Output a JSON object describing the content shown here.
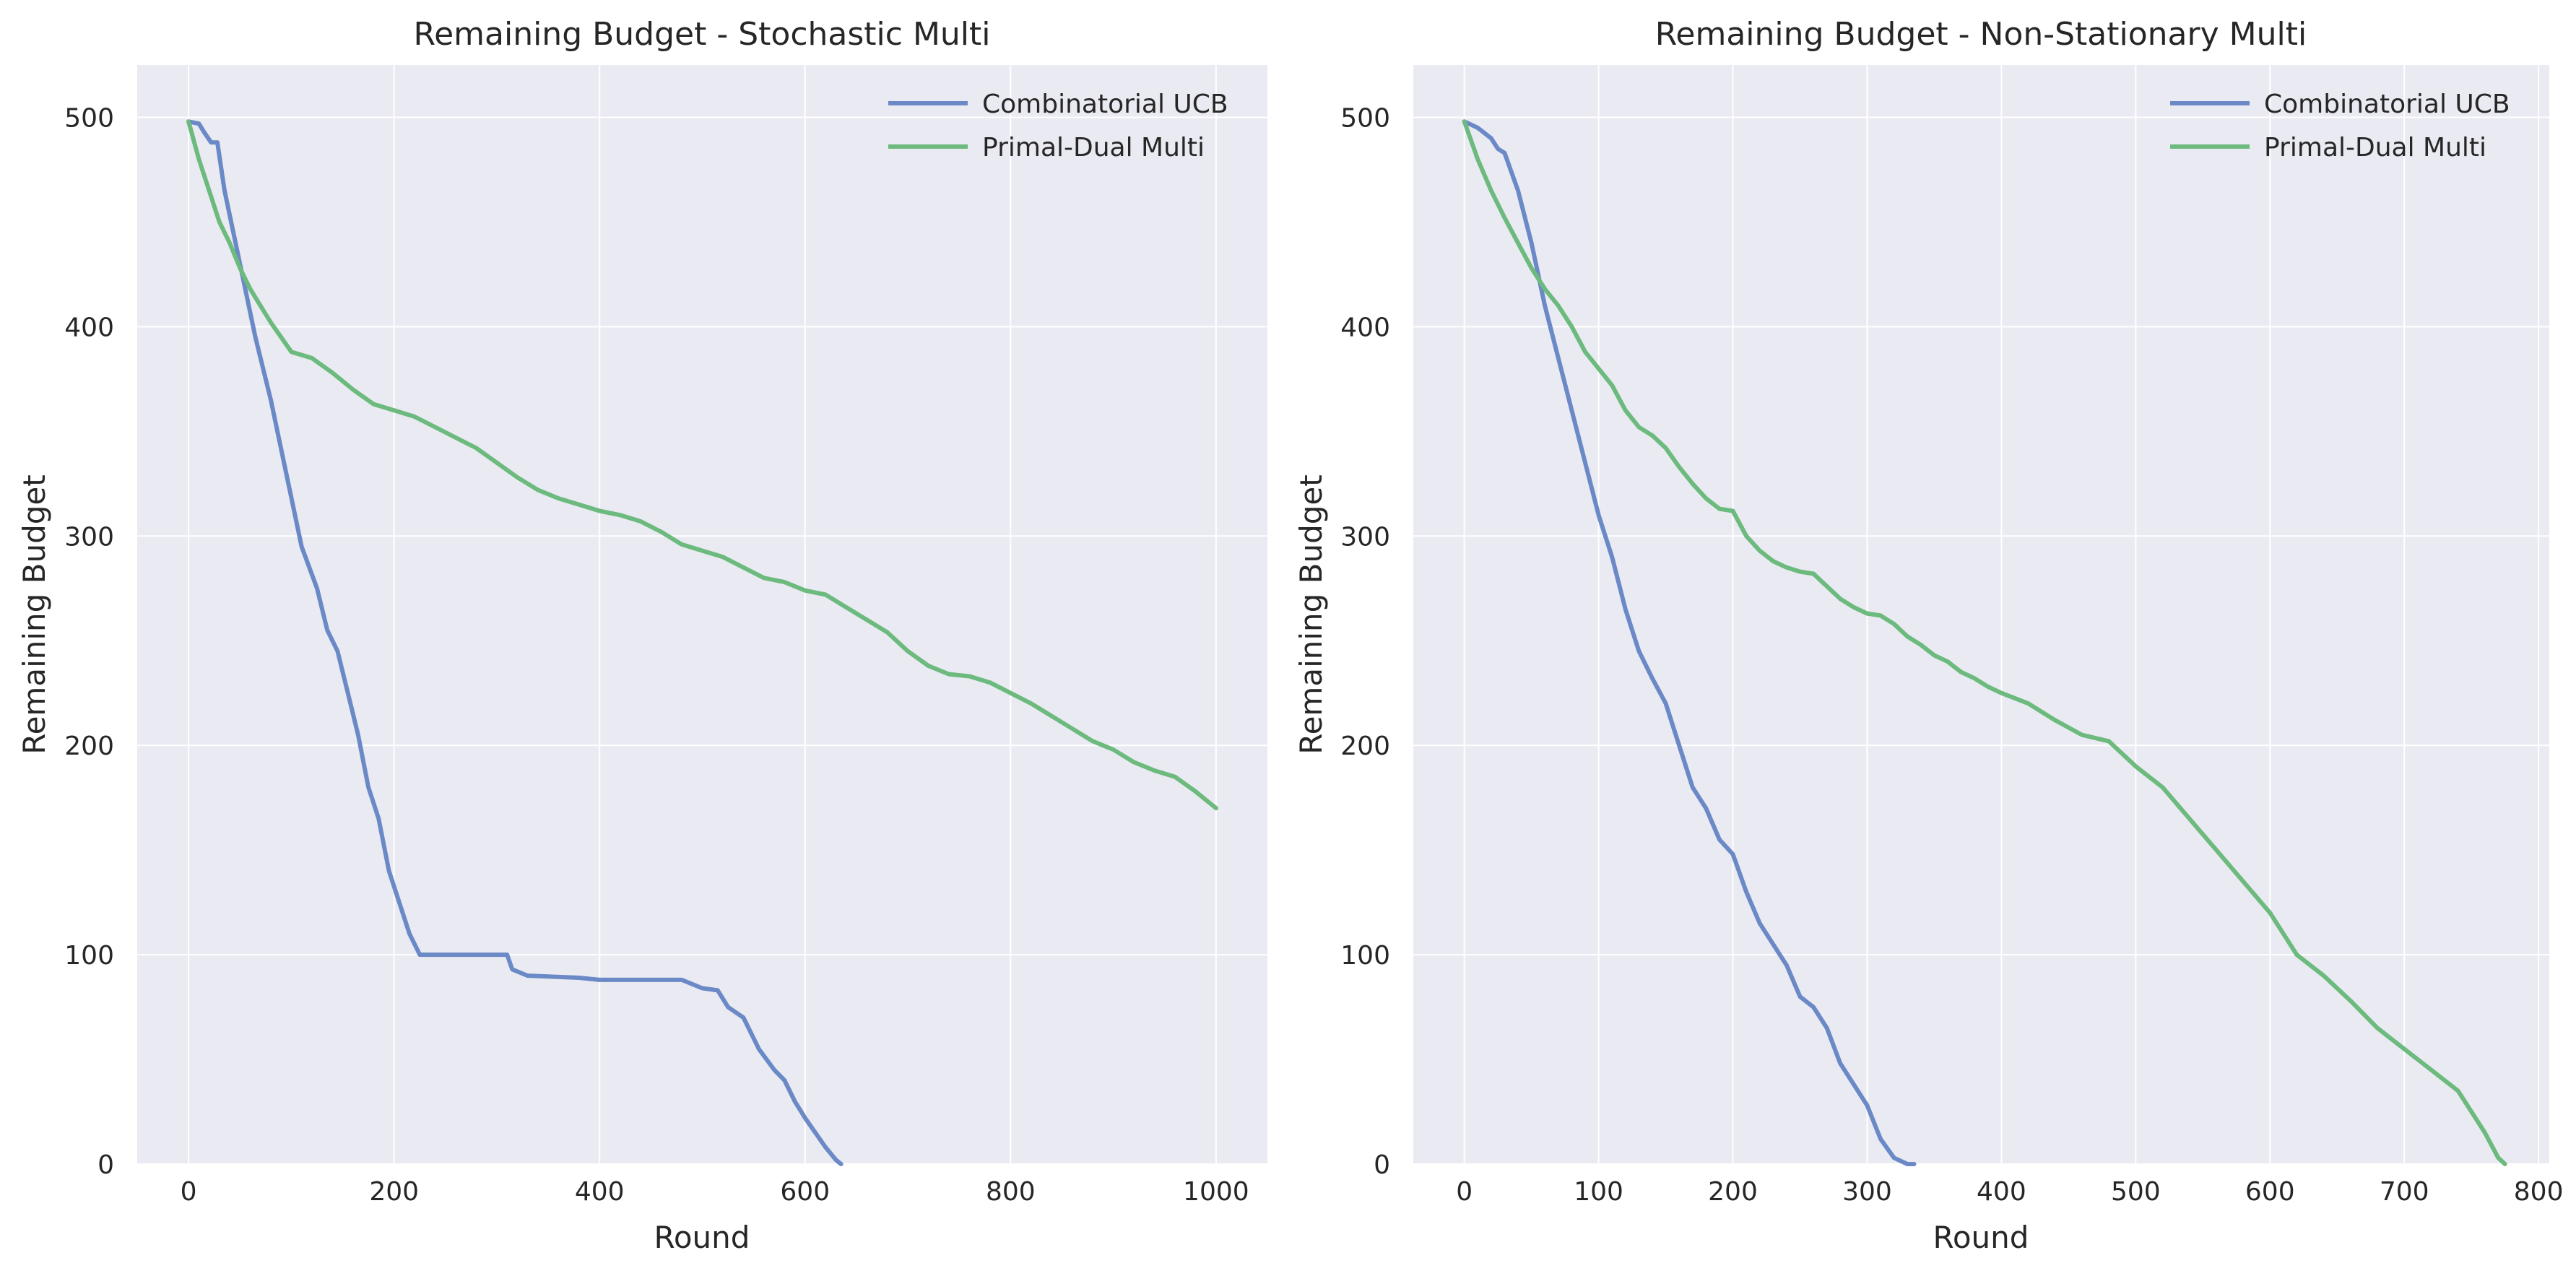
{
  "chart_data": [
    {
      "type": "line",
      "title": "Remaining Budget - Stochastic Multi",
      "xlabel": "Round",
      "ylabel": "Remaining Budget",
      "xlim": [
        -50,
        1050
      ],
      "ylim": [
        0,
        525
      ],
      "xticks": [
        0,
        200,
        400,
        600,
        800,
        1000
      ],
      "yticks": [
        0,
        100,
        200,
        300,
        400,
        500
      ],
      "grid": true,
      "legend_position": "top-right",
      "series": [
        {
          "name": "Combinatorial UCB",
          "color": "#6a89c6",
          "points": [
            [
              0,
              498
            ],
            [
              10,
              497
            ],
            [
              15,
              493
            ],
            [
              22,
              488
            ],
            [
              28,
              488
            ],
            [
              35,
              465
            ],
            [
              50,
              430
            ],
            [
              65,
              395
            ],
            [
              80,
              365
            ],
            [
              95,
              330
            ],
            [
              110,
              295
            ],
            [
              125,
              275
            ],
            [
              135,
              255
            ],
            [
              145,
              245
            ],
            [
              155,
              225
            ],
            [
              165,
              205
            ],
            [
              175,
              180
            ],
            [
              185,
              165
            ],
            [
              195,
              140
            ],
            [
              205,
              125
            ],
            [
              215,
              110
            ],
            [
              225,
              100
            ],
            [
              260,
              100
            ],
            [
              310,
              100
            ],
            [
              315,
              93
            ],
            [
              330,
              90
            ],
            [
              380,
              89
            ],
            [
              400,
              88
            ],
            [
              480,
              88
            ],
            [
              500,
              84
            ],
            [
              515,
              83
            ],
            [
              525,
              75
            ],
            [
              540,
              70
            ],
            [
              555,
              55
            ],
            [
              570,
              45
            ],
            [
              580,
              40
            ],
            [
              590,
              30
            ],
            [
              600,
              22
            ],
            [
              610,
              15
            ],
            [
              620,
              8
            ],
            [
              630,
              2
            ],
            [
              635,
              0
            ]
          ]
        },
        {
          "name": "Primal-Dual Multi",
          "color": "#6cba7d",
          "points": [
            [
              0,
              498
            ],
            [
              10,
              480
            ],
            [
              20,
              465
            ],
            [
              30,
              450
            ],
            [
              40,
              440
            ],
            [
              50,
              428
            ],
            [
              60,
              418
            ],
            [
              70,
              410
            ],
            [
              80,
              402
            ],
            [
              90,
              395
            ],
            [
              100,
              388
            ],
            [
              120,
              385
            ],
            [
              140,
              378
            ],
            [
              160,
              370
            ],
            [
              180,
              363
            ],
            [
              200,
              360
            ],
            [
              220,
              357
            ],
            [
              240,
              352
            ],
            [
              260,
              347
            ],
            [
              280,
              342
            ],
            [
              300,
              335
            ],
            [
              320,
              328
            ],
            [
              340,
              322
            ],
            [
              360,
              318
            ],
            [
              380,
              315
            ],
            [
              400,
              312
            ],
            [
              420,
              310
            ],
            [
              440,
              307
            ],
            [
              460,
              302
            ],
            [
              480,
              296
            ],
            [
              500,
              293
            ],
            [
              520,
              290
            ],
            [
              540,
              285
            ],
            [
              560,
              280
            ],
            [
              580,
              278
            ],
            [
              600,
              274
            ],
            [
              620,
              272
            ],
            [
              640,
              266
            ],
            [
              660,
              260
            ],
            [
              680,
              254
            ],
            [
              700,
              245
            ],
            [
              720,
              238
            ],
            [
              740,
              234
            ],
            [
              760,
              233
            ],
            [
              780,
              230
            ],
            [
              800,
              225
            ],
            [
              820,
              220
            ],
            [
              840,
              214
            ],
            [
              860,
              208
            ],
            [
              880,
              202
            ],
            [
              900,
              198
            ],
            [
              920,
              192
            ],
            [
              940,
              188
            ],
            [
              960,
              185
            ],
            [
              980,
              178
            ],
            [
              1000,
              170
            ]
          ]
        }
      ]
    },
    {
      "type": "line",
      "title": "Remaining Budget - Non-Stationary Multi",
      "xlabel": "Round",
      "ylabel": "Remaining Budget",
      "xlim": [
        -38,
        808
      ],
      "ylim": [
        0,
        525
      ],
      "xticks": [
        0,
        100,
        200,
        300,
        400,
        500,
        600,
        700,
        800
      ],
      "yticks": [
        0,
        100,
        200,
        300,
        400,
        500
      ],
      "grid": true,
      "legend_position": "top-right",
      "series": [
        {
          "name": "Combinatorial UCB",
          "color": "#6a89c6",
          "points": [
            [
              0,
              498
            ],
            [
              10,
              495
            ],
            [
              20,
              490
            ],
            [
              25,
              485
            ],
            [
              30,
              483
            ],
            [
              40,
              465
            ],
            [
              50,
              440
            ],
            [
              60,
              410
            ],
            [
              70,
              385
            ],
            [
              80,
              360
            ],
            [
              90,
              335
            ],
            [
              100,
              310
            ],
            [
              110,
              290
            ],
            [
              120,
              265
            ],
            [
              130,
              245
            ],
            [
              140,
              232
            ],
            [
              150,
              220
            ],
            [
              160,
              200
            ],
            [
              170,
              180
            ],
            [
              180,
              170
            ],
            [
              190,
              155
            ],
            [
              200,
              148
            ],
            [
              210,
              130
            ],
            [
              220,
              115
            ],
            [
              230,
              105
            ],
            [
              240,
              95
            ],
            [
              250,
              80
            ],
            [
              260,
              75
            ],
            [
              270,
              65
            ],
            [
              280,
              48
            ],
            [
              290,
              38
            ],
            [
              300,
              28
            ],
            [
              310,
              12
            ],
            [
              320,
              3
            ],
            [
              330,
              0
            ],
            [
              335,
              0
            ]
          ]
        },
        {
          "name": "Primal-Dual Multi",
          "color": "#6cba7d",
          "points": [
            [
              0,
              498
            ],
            [
              10,
              480
            ],
            [
              20,
              465
            ],
            [
              30,
              452
            ],
            [
              40,
              440
            ],
            [
              50,
              428
            ],
            [
              60,
              418
            ],
            [
              70,
              410
            ],
            [
              80,
              400
            ],
            [
              90,
              388
            ],
            [
              100,
              380
            ],
            [
              110,
              372
            ],
            [
              120,
              360
            ],
            [
              130,
              352
            ],
            [
              140,
              348
            ],
            [
              150,
              342
            ],
            [
              160,
              333
            ],
            [
              170,
              325
            ],
            [
              180,
              318
            ],
            [
              190,
              313
            ],
            [
              200,
              312
            ],
            [
              210,
              300
            ],
            [
              220,
              293
            ],
            [
              230,
              288
            ],
            [
              240,
              285
            ],
            [
              250,
              283
            ],
            [
              260,
              282
            ],
            [
              270,
              276
            ],
            [
              280,
              270
            ],
            [
              290,
              266
            ],
            [
              300,
              263
            ],
            [
              310,
              262
            ],
            [
              320,
              258
            ],
            [
              330,
              252
            ],
            [
              340,
              248
            ],
            [
              350,
              243
            ],
            [
              360,
              240
            ],
            [
              370,
              235
            ],
            [
              380,
              232
            ],
            [
              390,
              228
            ],
            [
              400,
              225
            ],
            [
              420,
              220
            ],
            [
              440,
              212
            ],
            [
              460,
              205
            ],
            [
              480,
              202
            ],
            [
              500,
              190
            ],
            [
              520,
              180
            ],
            [
              540,
              165
            ],
            [
              560,
              150
            ],
            [
              580,
              135
            ],
            [
              600,
              120
            ],
            [
              620,
              100
            ],
            [
              640,
              90
            ],
            [
              660,
              78
            ],
            [
              680,
              65
            ],
            [
              700,
              55
            ],
            [
              720,
              45
            ],
            [
              740,
              35
            ],
            [
              760,
              15
            ],
            [
              770,
              3
            ],
            [
              775,
              0
            ]
          ]
        }
      ]
    }
  ]
}
